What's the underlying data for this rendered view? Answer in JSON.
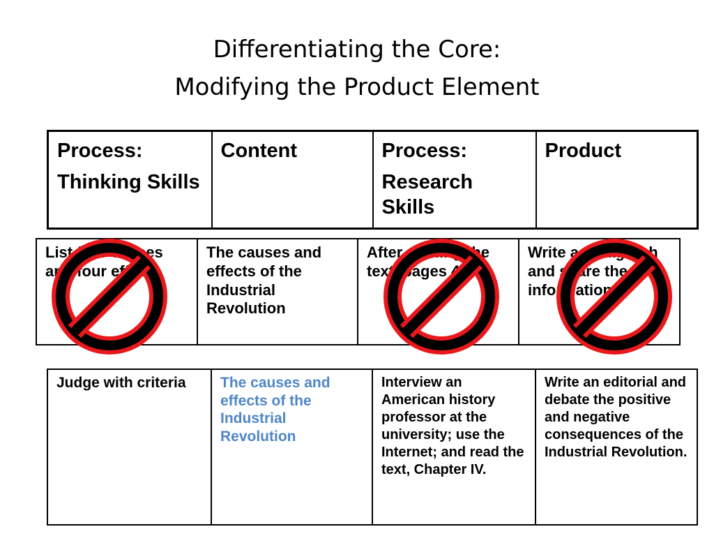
{
  "slide": {
    "title_line1": "Differentiating the Core:",
    "title_line2": "Modifying the Product Element"
  },
  "header_row": {
    "col1_line1": "Process:",
    "col1_line2": "Thinking Skills",
    "col2": "Content",
    "col3_line1": "Process:",
    "col3_line2": "Research Skills",
    "col4": "Product"
  },
  "crossed_row": {
    "col1": "List four causes and four effects",
    "col2": "The causes and effects of the Industrial Revolution",
    "col3": "After reading the text, pages 42-49.",
    "col4": "Write a paragraph and share the information."
  },
  "modified_row": {
    "col1": "Judge with criteria",
    "col2": "The causes and effects of the Industrial Revolution",
    "col3": "Interview an American history professor at the university; use the Internet; and read the text, Chapter IV.",
    "col4": "Write an editorial and debate the positive and negative consequences of the Industrial Revolution."
  },
  "colors": {
    "highlight_text": "#4f86c6",
    "prohibition_red": "#e8191c"
  },
  "icons": [
    "prohibition-icon"
  ]
}
